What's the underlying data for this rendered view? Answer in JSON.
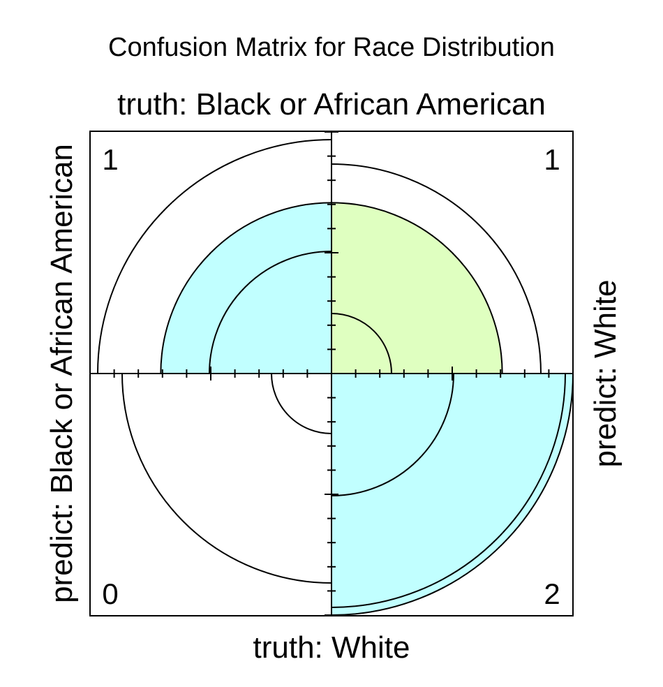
{
  "chart_data": {
    "type": "fourfold",
    "title": "Confusion Matrix for Race Distribution",
    "top_label": "truth: Black or African American",
    "bottom_label": "truth: White",
    "left_label": "predict: Black or African American",
    "right_label": "predict: White",
    "cells": [
      {
        "truth": "Black or African American",
        "predict": "Black or African American",
        "quadrant": "top-left",
        "count": "1",
        "value": 1
      },
      {
        "truth": "Black or African American",
        "predict": "White",
        "quadrant": "top-right",
        "count": "1",
        "value": 1
      },
      {
        "truth": "White",
        "predict": "Black or African American",
        "quadrant": "bottom-left",
        "count": "0",
        "value": 0
      },
      {
        "truth": "White",
        "predict": "White",
        "quadrant": "bottom-right",
        "count": "2",
        "value": 2
      }
    ],
    "colors": {
      "diagonal": "#C1FFFF",
      "off_diagonal": "#DFFFC0",
      "outline": "#000000",
      "background": "#FFFFFF"
    }
  }
}
